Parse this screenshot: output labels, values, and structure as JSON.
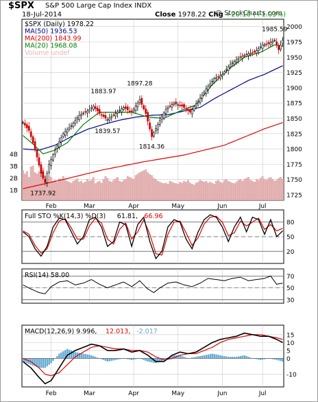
{
  "header": {
    "symbol": "$SPX",
    "name": "S&P 500 Large Cap Index  INDX",
    "date": "18-Jul-2014",
    "close_label": "Close",
    "close_value": "1978.22",
    "chg_label": "Chg",
    "chg_value": "+20.10 (+1.03%)",
    "watermark": "@ StockCharts.com"
  },
  "colors": {
    "up": "#000000",
    "down": "#cc0000",
    "ma50": "#00008b",
    "ma200": "#e00000",
    "ma20": "#008000",
    "volume": "#e8b4b4",
    "macd_hist": "#5fa8d3",
    "grid": "#c8c8c8"
  },
  "chart_data": [
    {
      "type": "candlestick",
      "legend": [
        {
          "label": "$SPX (Daily) 1978.22",
          "icon": "candle-icon"
        },
        {
          "label": "MA(50) 1936.53",
          "color": "#00008b"
        },
        {
          "label": "MA(200) 1843.99",
          "color": "#e00000"
        },
        {
          "label": "MA(20) 1968.08",
          "color": "#008000"
        },
        {
          "label": "Volume undef",
          "color": "#e8b4b4"
        }
      ],
      "y_ticks": [
        1725,
        1750,
        1775,
        1800,
        1825,
        1850,
        1875,
        1900,
        1925,
        1950,
        1975,
        2000
      ],
      "ylim": [
        1716,
        2012
      ],
      "volume_ticks": [
        "1B",
        "2B",
        "3B",
        "4B"
      ],
      "x_labels": [
        "Feb",
        "Mar",
        "Apr",
        "May",
        "Jun",
        "Jul"
      ],
      "x_label_days": [
        14,
        33,
        55,
        77,
        99,
        119
      ],
      "num_days": 130,
      "annotations": [
        {
          "text": "1985.59",
          "day": 125,
          "value": 1985.59,
          "position": "above"
        },
        {
          "text": "1897.28",
          "day": 58,
          "value": 1897.28,
          "position": "above"
        },
        {
          "text": "1883.97",
          "day": 40,
          "value": 1883.97,
          "position": "above"
        },
        {
          "text": "1839.57",
          "day": 42,
          "value": 1839.57,
          "position": "below"
        },
        {
          "text": "1814.36",
          "day": 64,
          "value": 1814.36,
          "position": "below"
        },
        {
          "text": "1737.92",
          "day": 10,
          "value": 1737.92,
          "position": "below"
        }
      ],
      "close_anchors": [
        [
          0,
          1843
        ],
        [
          3,
          1830
        ],
        [
          6,
          1800
        ],
        [
          9,
          1760
        ],
        [
          11,
          1745
        ],
        [
          13,
          1775
        ],
        [
          16,
          1798
        ],
        [
          20,
          1825
        ],
        [
          24,
          1838
        ],
        [
          28,
          1855
        ],
        [
          32,
          1862
        ],
        [
          35,
          1870
        ],
        [
          38,
          1858
        ],
        [
          42,
          1848
        ],
        [
          46,
          1858
        ],
        [
          50,
          1868
        ],
        [
          54,
          1860
        ],
        [
          58,
          1880
        ],
        [
          61,
          1858
        ],
        [
          64,
          1820
        ],
        [
          67,
          1840
        ],
        [
          71,
          1865
        ],
        [
          75,
          1875
        ],
        [
          79,
          1870
        ],
        [
          83,
          1860
        ],
        [
          87,
          1878
        ],
        [
          91,
          1898
        ],
        [
          95,
          1915
        ],
        [
          99,
          1922
        ],
        [
          103,
          1938
        ],
        [
          107,
          1948
        ],
        [
          111,
          1955
        ],
        [
          115,
          1958
        ],
        [
          119,
          1970
        ],
        [
          122,
          1972
        ],
        [
          125,
          1978
        ],
        [
          127,
          1962
        ],
        [
          129,
          1978
        ]
      ],
      "ma50_anchors": [
        [
          0,
          1800
        ],
        [
          8,
          1798
        ],
        [
          16,
          1806
        ],
        [
          24,
          1820
        ],
        [
          32,
          1832
        ],
        [
          40,
          1840
        ],
        [
          48,
          1847
        ],
        [
          56,
          1852
        ],
        [
          64,
          1855
        ],
        [
          72,
          1856
        ],
        [
          80,
          1862
        ],
        [
          88,
          1868
        ],
        [
          96,
          1884
        ],
        [
          104,
          1898
        ],
        [
          112,
          1912
        ],
        [
          120,
          1922
        ],
        [
          129,
          1936
        ]
      ],
      "ma200_anchors": [
        [
          0,
          1735
        ],
        [
          20,
          1750
        ],
        [
          40,
          1766
        ],
        [
          60,
          1779
        ],
        [
          80,
          1790
        ],
        [
          100,
          1806
        ],
        [
          120,
          1833
        ],
        [
          129,
          1843
        ]
      ],
      "ma20_anchors": [
        [
          0,
          1822
        ],
        [
          5,
          1808
        ],
        [
          10,
          1792
        ],
        [
          15,
          1797
        ],
        [
          22,
          1810
        ],
        [
          30,
          1840
        ],
        [
          38,
          1860
        ],
        [
          46,
          1860
        ],
        [
          54,
          1860
        ],
        [
          62,
          1852
        ],
        [
          70,
          1850
        ],
        [
          78,
          1862
        ],
        [
          86,
          1872
        ],
        [
          94,
          1905
        ],
        [
          102,
          1930
        ],
        [
          110,
          1950
        ],
        [
          118,
          1958
        ],
        [
          125,
          1970
        ],
        [
          129,
          1968
        ]
      ],
      "volume_pct": [
        62,
        55,
        60,
        48,
        70,
        72,
        58,
        55,
        60,
        65,
        68,
        50,
        45,
        52,
        48,
        40,
        42,
        38,
        45,
        44,
        50,
        42,
        40,
        38,
        36,
        40,
        42,
        45,
        38,
        40,
        36,
        38,
        44,
        40,
        42,
        48,
        35,
        38,
        40,
        36,
        44,
        50,
        46,
        40,
        38,
        42,
        45,
        48,
        40,
        38,
        42,
        44,
        50,
        48,
        46,
        44,
        52,
        55,
        58,
        60,
        62,
        64,
        58,
        54,
        52,
        46,
        44,
        40,
        38,
        36,
        35,
        36,
        34,
        40,
        38,
        36,
        35,
        34,
        38,
        36,
        40,
        38,
        42,
        36,
        34,
        32,
        36,
        38,
        42,
        40,
        38,
        40,
        36,
        38,
        36,
        34,
        40,
        42,
        38,
        36,
        42,
        44,
        40,
        38,
        36,
        35,
        38,
        42,
        44,
        40,
        44,
        46,
        48,
        42,
        40,
        38,
        44,
        42,
        46,
        50,
        44,
        42,
        46,
        48,
        44,
        40,
        42,
        46,
        48,
        44
      ]
    },
    {
      "type": "line",
      "legend": [
        {
          "label": "Full STO %K(14,3) %D(3)",
          "color": "#000000"
        },
        {
          "label": "61.81,",
          "color": "#000000"
        },
        {
          "label": "66.96",
          "color": "#e00000"
        }
      ],
      "y_ticks": [
        20,
        50,
        80
      ],
      "reference_lines": [
        20,
        80
      ],
      "mid_line": 50,
      "ylim": [
        -5,
        105
      ],
      "k_anchors": [
        [
          0,
          60
        ],
        [
          3,
          50
        ],
        [
          6,
          25
        ],
        [
          9,
          10
        ],
        [
          12,
          30
        ],
        [
          15,
          70
        ],
        [
          18,
          88
        ],
        [
          21,
          85
        ],
        [
          24,
          60
        ],
        [
          27,
          35
        ],
        [
          30,
          50
        ],
        [
          33,
          85
        ],
        [
          36,
          90
        ],
        [
          39,
          70
        ],
        [
          42,
          30
        ],
        [
          45,
          40
        ],
        [
          48,
          80
        ],
        [
          51,
          75
        ],
        [
          54,
          30
        ],
        [
          57,
          75
        ],
        [
          60,
          90
        ],
        [
          63,
          40
        ],
        [
          66,
          5
        ],
        [
          69,
          20
        ],
        [
          72,
          70
        ],
        [
          75,
          85
        ],
        [
          78,
          80
        ],
        [
          81,
          45
        ],
        [
          84,
          25
        ],
        [
          87,
          60
        ],
        [
          90,
          85
        ],
        [
          93,
          95
        ],
        [
          96,
          90
        ],
        [
          99,
          70
        ],
        [
          102,
          40
        ],
        [
          105,
          70
        ],
        [
          108,
          90
        ],
        [
          111,
          60
        ],
        [
          114,
          90
        ],
        [
          117,
          85
        ],
        [
          120,
          55
        ],
        [
          123,
          85
        ],
        [
          126,
          50
        ],
        [
          129,
          62
        ]
      ],
      "d_anchors": [
        [
          0,
          62
        ],
        [
          3,
          55
        ],
        [
          6,
          32
        ],
        [
          9,
          16
        ],
        [
          12,
          25
        ],
        [
          15,
          58
        ],
        [
          18,
          82
        ],
        [
          21,
          87
        ],
        [
          24,
          68
        ],
        [
          27,
          45
        ],
        [
          30,
          45
        ],
        [
          33,
          72
        ],
        [
          36,
          88
        ],
        [
          39,
          78
        ],
        [
          42,
          45
        ],
        [
          45,
          35
        ],
        [
          48,
          65
        ],
        [
          51,
          78
        ],
        [
          54,
          45
        ],
        [
          57,
          60
        ],
        [
          60,
          85
        ],
        [
          63,
          55
        ],
        [
          66,
          15
        ],
        [
          69,
          12
        ],
        [
          72,
          55
        ],
        [
          75,
          80
        ],
        [
          78,
          82
        ],
        [
          81,
          58
        ],
        [
          84,
          32
        ],
        [
          87,
          48
        ],
        [
          90,
          76
        ],
        [
          93,
          90
        ],
        [
          96,
          92
        ],
        [
          99,
          80
        ],
        [
          102,
          52
        ],
        [
          105,
          58
        ],
        [
          108,
          82
        ],
        [
          111,
          72
        ],
        [
          114,
          80
        ],
        [
          117,
          88
        ],
        [
          120,
          65
        ],
        [
          123,
          75
        ],
        [
          126,
          62
        ],
        [
          129,
          67
        ]
      ]
    },
    {
      "type": "line",
      "legend": [
        {
          "label": "RSI(14) 58.00",
          "color": "#000000"
        }
      ],
      "y_ticks": [
        30,
        50,
        70
      ],
      "reference_lines": [
        30,
        70
      ],
      "mid_line": 50,
      "ylim": [
        24,
        82
      ],
      "rsi_anchors": [
        [
          0,
          55
        ],
        [
          4,
          48
        ],
        [
          8,
          42
        ],
        [
          11,
          40
        ],
        [
          14,
          52
        ],
        [
          18,
          60
        ],
        [
          22,
          62
        ],
        [
          26,
          55
        ],
        [
          30,
          58
        ],
        [
          34,
          64
        ],
        [
          38,
          56
        ],
        [
          42,
          50
        ],
        [
          46,
          55
        ],
        [
          50,
          60
        ],
        [
          54,
          52
        ],
        [
          58,
          62
        ],
        [
          62,
          48
        ],
        [
          65,
          42
        ],
        [
          68,
          50
        ],
        [
          72,
          58
        ],
        [
          76,
          60
        ],
        [
          80,
          55
        ],
        [
          84,
          52
        ],
        [
          88,
          58
        ],
        [
          92,
          66
        ],
        [
          96,
          64
        ],
        [
          100,
          62
        ],
        [
          104,
          66
        ],
        [
          108,
          68
        ],
        [
          112,
          62
        ],
        [
          116,
          64
        ],
        [
          120,
          66
        ],
        [
          123,
          70
        ],
        [
          126,
          56
        ],
        [
          129,
          58
        ]
      ]
    },
    {
      "type": "bar",
      "legend": [
        {
          "label": "MACD(12,26,9) 9.996,",
          "color": "#000000"
        },
        {
          "label": "12.013,",
          "color": "#e00000"
        },
        {
          "label": "-2.017",
          "color": "#5fa8d3"
        }
      ],
      "y_ticks": [
        -10,
        0,
        5,
        10,
        15
      ],
      "zero_line": 0,
      "ylim": [
        -18,
        21
      ],
      "macd_anchors": [
        [
          0,
          -2
        ],
        [
          4,
          -6
        ],
        [
          8,
          -12
        ],
        [
          11,
          -16
        ],
        [
          14,
          -14
        ],
        [
          18,
          -6
        ],
        [
          22,
          2
        ],
        [
          26,
          5
        ],
        [
          30,
          7
        ],
        [
          34,
          9
        ],
        [
          38,
          8
        ],
        [
          42,
          5
        ],
        [
          46,
          5
        ],
        [
          50,
          6
        ],
        [
          54,
          4
        ],
        [
          58,
          5
        ],
        [
          62,
          2
        ],
        [
          66,
          -2
        ],
        [
          70,
          -2
        ],
        [
          74,
          2
        ],
        [
          78,
          4
        ],
        [
          82,
          3
        ],
        [
          86,
          4
        ],
        [
          90,
          7
        ],
        [
          94,
          10
        ],
        [
          98,
          12
        ],
        [
          102,
          13
        ],
        [
          106,
          14
        ],
        [
          110,
          16
        ],
        [
          114,
          15
        ],
        [
          118,
          14
        ],
        [
          122,
          14
        ],
        [
          126,
          12
        ],
        [
          129,
          10
        ]
      ],
      "signal_anchors": [
        [
          0,
          0
        ],
        [
          4,
          -2
        ],
        [
          8,
          -6
        ],
        [
          11,
          -10
        ],
        [
          14,
          -11
        ],
        [
          18,
          -9
        ],
        [
          22,
          -4
        ],
        [
          26,
          1
        ],
        [
          30,
          4
        ],
        [
          34,
          7
        ],
        [
          38,
          8
        ],
        [
          42,
          7
        ],
        [
          46,
          6
        ],
        [
          50,
          6
        ],
        [
          54,
          5
        ],
        [
          58,
          5
        ],
        [
          62,
          4
        ],
        [
          66,
          1
        ],
        [
          70,
          -1
        ],
        [
          74,
          0
        ],
        [
          78,
          2
        ],
        [
          82,
          3
        ],
        [
          86,
          3
        ],
        [
          90,
          5
        ],
        [
          94,
          7
        ],
        [
          98,
          10
        ],
        [
          102,
          12
        ],
        [
          106,
          13
        ],
        [
          110,
          14
        ],
        [
          114,
          15
        ],
        [
          118,
          15
        ],
        [
          122,
          14
        ],
        [
          126,
          13
        ],
        [
          129,
          12
        ]
      ]
    }
  ]
}
